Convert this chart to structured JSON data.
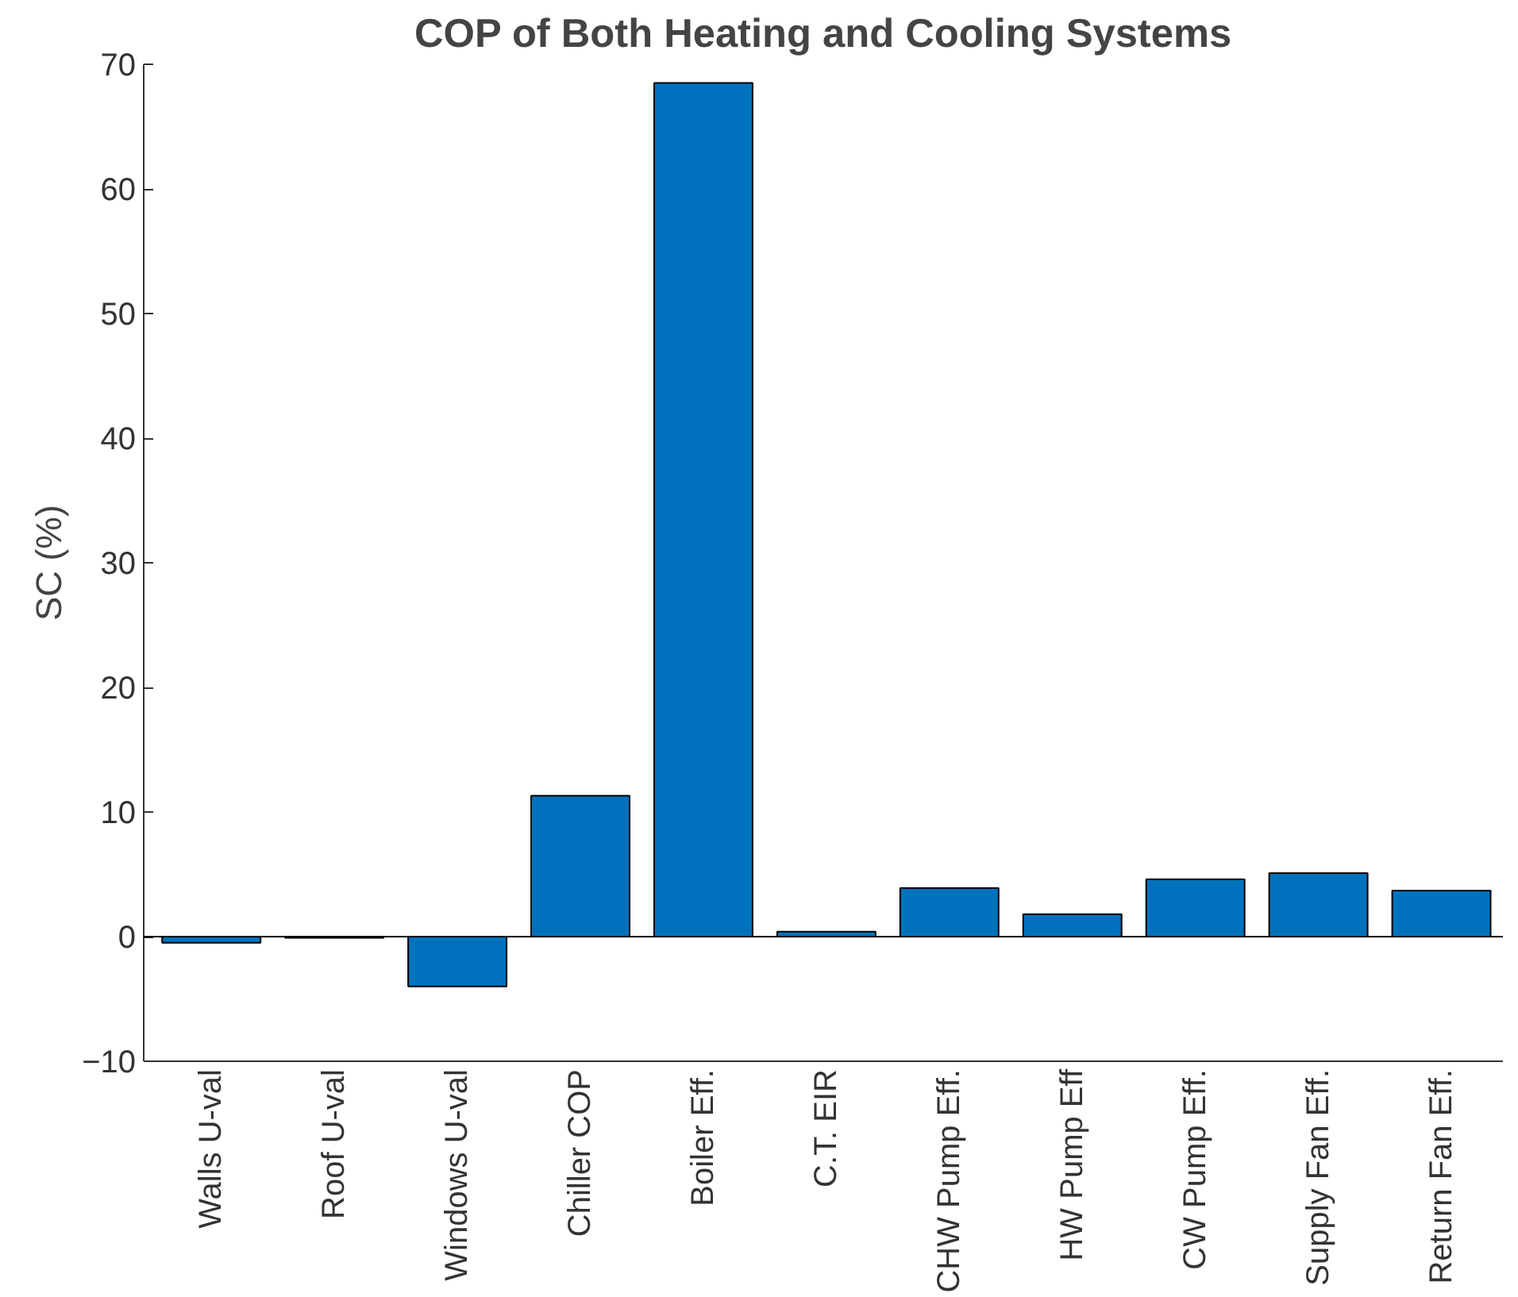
{
  "chart_data": {
    "type": "bar",
    "title": "COP of Both Heating and Cooling Systems",
    "ylabel": "SC (%)",
    "categories": [
      "Walls U-val",
      "Roof U-val",
      "Windows U-val",
      "Chiller COP",
      "Boiler Eff.",
      "C.T. EIR",
      "CHW Pump Eff.",
      "HW Pump Eff",
      "CW Pump Eff.",
      "Supply Fan Eff.",
      "Return Fan Eff."
    ],
    "values": [
      -0.5,
      -0.1,
      -4.0,
      11.3,
      68.5,
      0.4,
      3.9,
      1.8,
      4.6,
      5.1,
      3.7
    ],
    "color": "#0072bd",
    "ylim": [
      -10,
      70
    ],
    "yticks": [
      -10,
      0,
      10,
      20,
      30,
      40,
      50,
      60,
      70
    ],
    "ref_lines": [
      {
        "axis": "y",
        "value": 0,
        "color": "#000000"
      }
    ],
    "grid": false
  }
}
